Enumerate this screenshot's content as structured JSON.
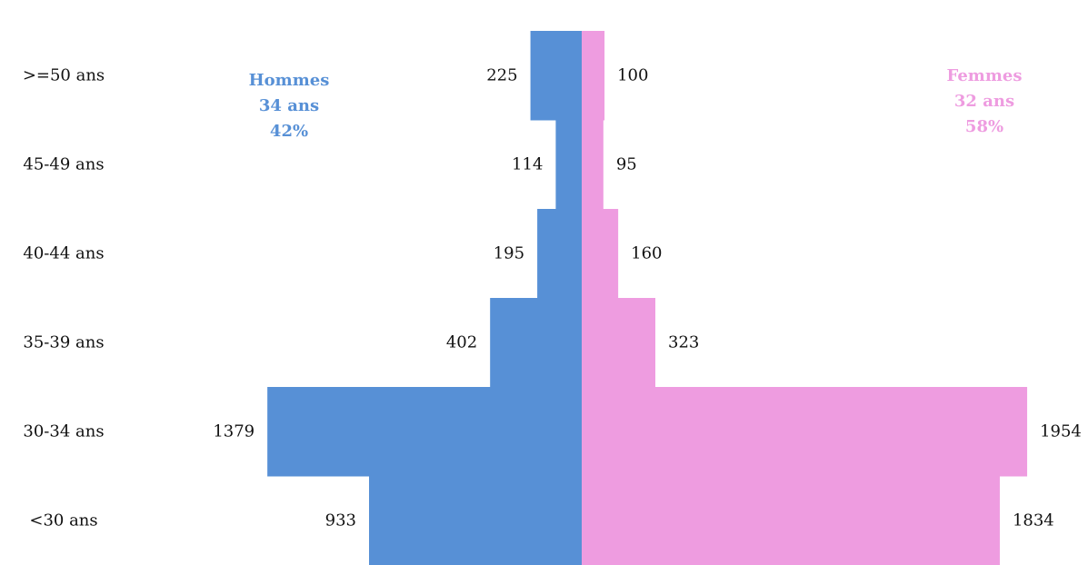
{
  "chart_data": {
    "type": "bar",
    "orientation": "horizontal",
    "layout": "population-pyramid",
    "categories": [
      ">=50 ans",
      "45-49 ans",
      "40-44 ans",
      "35-39 ans",
      "30-34 ans",
      "<30 ans"
    ],
    "series": [
      {
        "name": "Hommes",
        "side": "left",
        "color": "#5790d6",
        "values": [
          225,
          114,
          195,
          402,
          1379,
          933
        ]
      },
      {
        "name": "Femmes",
        "side": "right",
        "color": "#ee9ce0",
        "values": [
          100,
          95,
          160,
          323,
          1954,
          1834
        ]
      }
    ],
    "legend": {
      "left": {
        "name": "Hommes",
        "age": "34 ans",
        "share": "42%"
      },
      "right": {
        "name": "Femmes",
        "age": "32 ans",
        "share": "58%"
      }
    },
    "xlim": [
      0,
      2000
    ],
    "grid": false
  }
}
